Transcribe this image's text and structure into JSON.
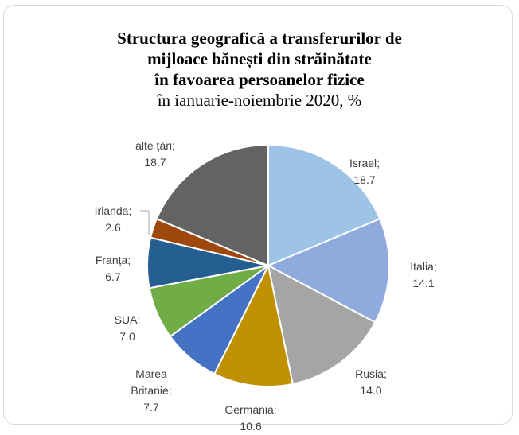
{
  "chart_data": {
    "type": "pie",
    "title": [
      "Structura geografică a transferurilor de",
      "mijloace bănești din străinătate",
      "în favoarea persoanelor fizice"
    ],
    "subtitle": "în ianuarie-noiembrie 2020, %",
    "label_separator": ";",
    "categories": [
      "Israel",
      "Italia",
      "Rusia",
      "Germania",
      "Marea Britanie",
      "SUA",
      "Franța",
      "Irlanda",
      "alte țări"
    ],
    "values": [
      18.7,
      14.1,
      14.0,
      10.6,
      7.7,
      7.0,
      6.7,
      2.6,
      18.7
    ],
    "value_labels": [
      "18.7",
      "14.1",
      "14.0",
      "10.6",
      "7.7",
      "7.0",
      "6.7",
      "2.6",
      "18.7"
    ],
    "colors": [
      "#9dc3e6",
      "#8faadc",
      "#a5a5a5",
      "#bf9000",
      "#4472c4",
      "#70ad47",
      "#255e91",
      "#9e480e",
      "#636363"
    ]
  }
}
